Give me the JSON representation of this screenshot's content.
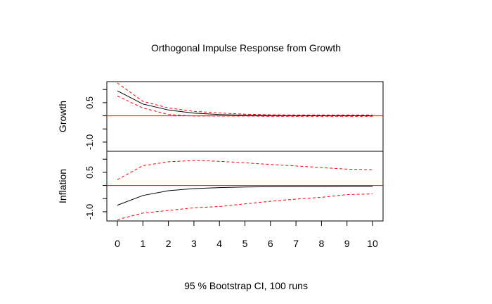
{
  "chart_data": {
    "type": "line",
    "title": "Orthogonal Impulse Response from Growth",
    "footer": "95 % Bootstrap CI,  100 runs",
    "x": [
      0,
      1,
      2,
      3,
      4,
      5,
      6,
      7,
      8,
      9,
      10
    ],
    "x_ticks": [
      "0",
      "1",
      "2",
      "3",
      "4",
      "5",
      "6",
      "7",
      "8",
      "9",
      "10"
    ],
    "colors": {
      "irf": "#000000",
      "ci": "#ff0000",
      "zero": "#ff0000"
    },
    "panels": [
      {
        "ylabel": "Growth",
        "ylim": [
          -1.35,
          1.3
        ],
        "y_ticks": [
          -1.0,
          0.5
        ],
        "y_tick_labels": [
          "-1.0",
          "0.5"
        ],
        "series": [
          {
            "role": "irf",
            "values": [
              0.95,
              0.45,
              0.22,
              0.1,
              0.05,
              0.02,
              0.01,
              0.005,
              0.003,
              0.002,
              0.001
            ]
          },
          {
            "role": "ci_upper",
            "values": [
              1.25,
              0.55,
              0.3,
              0.17,
              0.11,
              0.06,
              0.04,
              0.03,
              0.03,
              0.03,
              0.03
            ]
          },
          {
            "role": "ci_lower",
            "values": [
              0.75,
              0.3,
              0.05,
              -0.01,
              -0.01,
              -0.01,
              -0.02,
              -0.02,
              -0.02,
              -0.02,
              -0.02
            ]
          }
        ]
      },
      {
        "ylabel": "Inflation",
        "ylim": [
          -1.35,
          1.3
        ],
        "y_ticks": [
          -1.0,
          0.5
        ],
        "y_tick_labels": [
          "-1.0",
          "0.5"
        ],
        "series": [
          {
            "role": "irf",
            "values": [
              -0.75,
              -0.38,
              -0.2,
              -0.12,
              -0.08,
              -0.06,
              -0.05,
              -0.04,
              -0.04,
              -0.03,
              -0.03
            ]
          },
          {
            "role": "ci_upper",
            "values": [
              0.22,
              0.75,
              0.9,
              0.95,
              0.92,
              0.86,
              0.8,
              0.74,
              0.68,
              0.62,
              0.6
            ]
          },
          {
            "role": "ci_lower",
            "values": [
              -1.3,
              -1.05,
              -0.95,
              -0.85,
              -0.8,
              -0.7,
              -0.6,
              -0.52,
              -0.45,
              -0.35,
              -0.32
            ]
          }
        ]
      }
    ]
  }
}
